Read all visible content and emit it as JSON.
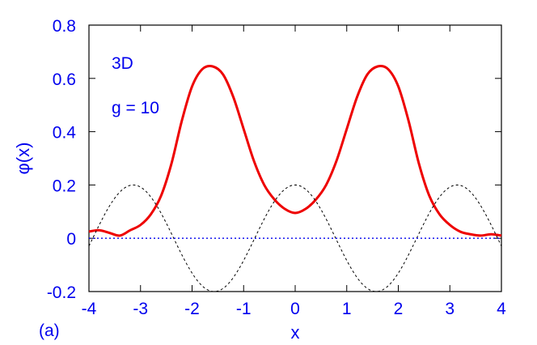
{
  "chart_data": {
    "type": "line",
    "xlabel": "x",
    "ylabel": "φ(x)",
    "xlim": [
      -4,
      4
    ],
    "ylim": [
      -0.2,
      0.8
    ],
    "x_ticks": [
      -4,
      -3,
      -2,
      -1,
      0,
      1,
      2,
      3,
      4
    ],
    "x_tick_labels": [
      "-4",
      "-3",
      "-2",
      "-1",
      "0",
      "1",
      "2",
      "3",
      "4"
    ],
    "y_ticks": [
      -0.2,
      0,
      0.2,
      0.4,
      0.6,
      0.8
    ],
    "y_tick_labels": [
      "-0.2",
      "0",
      "0.2",
      "0.4",
      "0.6",
      "0.8"
    ],
    "annotations": [
      "3D",
      "g = 10"
    ],
    "panel_label": "(a)",
    "grid": false,
    "series": [
      {
        "style": "solid",
        "color": "#ee0000",
        "x": [
          -4,
          -3.8,
          -3.6,
          -3.4,
          -3.2,
          -3.0,
          -2.8,
          -2.6,
          -2.4,
          -2.2,
          -2.0,
          -1.8,
          -1.6,
          -1.4,
          -1.2,
          -1.0,
          -0.8,
          -0.6,
          -0.4,
          -0.2,
          0,
          0.2,
          0.4,
          0.6,
          0.8,
          1.0,
          1.2,
          1.4,
          1.6,
          1.8,
          2.0,
          2.2,
          2.4,
          2.6,
          2.8,
          3.0,
          3.2,
          3.4,
          3.6,
          3.8,
          4.0
        ],
        "y": [
          0.025,
          0.03,
          0.02,
          0.01,
          0.03,
          0.05,
          0.09,
          0.16,
          0.28,
          0.44,
          0.57,
          0.635,
          0.645,
          0.615,
          0.53,
          0.41,
          0.29,
          0.2,
          0.145,
          0.11,
          0.095,
          0.11,
          0.145,
          0.2,
          0.29,
          0.41,
          0.53,
          0.615,
          0.645,
          0.635,
          0.57,
          0.44,
          0.28,
          0.16,
          0.09,
          0.05,
          0.025,
          0.015,
          0.01,
          0.015,
          0.01
        ]
      },
      {
        "style": "dashed",
        "color": "#000000",
        "function": "0.2*cos(2x)",
        "x_range": [
          -4,
          4
        ]
      },
      {
        "style": "dotted",
        "color": "#0000ee",
        "function": "0",
        "x_range": [
          -4,
          4
        ]
      }
    ]
  }
}
